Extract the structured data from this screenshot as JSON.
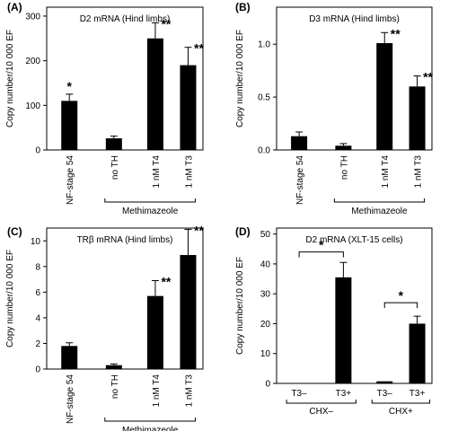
{
  "chart_data": [
    {
      "type": "bar",
      "panel": "(A)",
      "title": "D2 mRNA (Hind limbs)",
      "ylabel": "Copy number/10 000 EF",
      "ylim": [
        0,
        320
      ],
      "yticks": [
        0,
        100,
        200,
        300
      ],
      "categories": [
        "NF-stage 54",
        "no TH",
        "1 nM T4",
        "1 nM T3"
      ],
      "values": [
        110,
        26,
        250,
        190
      ],
      "errors": [
        15,
        5,
        35,
        40
      ],
      "annotations": [
        "*",
        "",
        "**",
        "**"
      ],
      "bracket": {
        "label": "Methimazeole",
        "from": 1,
        "to": 3
      }
    },
    {
      "type": "bar",
      "panel": "(B)",
      "title": "D3 mRNA (Hind limbs)",
      "ylabel": "Copy number/10 000 EF",
      "ylim": [
        0,
        1.35
      ],
      "yticks": [
        "0.0",
        "0.5",
        "1.0"
      ],
      "categories": [
        "NF-stage 54",
        "no TH",
        "1 nM T4",
        "1 nM T3"
      ],
      "values": [
        0.13,
        0.04,
        1.01,
        0.6
      ],
      "errors": [
        0.04,
        0.02,
        0.1,
        0.1
      ],
      "annotations": [
        "",
        "",
        "**",
        "**"
      ],
      "bracket": {
        "label": "Methimazeole",
        "from": 1,
        "to": 3
      }
    },
    {
      "type": "bar",
      "panel": "(C)",
      "title": "TRβ mRNA (Hind limbs)",
      "ylabel": "Copy number/10 000 EF",
      "ylim": [
        0,
        11
      ],
      "yticks": [
        0,
        2,
        4,
        6,
        8,
        10
      ],
      "categories": [
        "NF-stage 54",
        "no TH",
        "1 nM T4",
        "1 nM T3"
      ],
      "values": [
        1.8,
        0.3,
        5.7,
        8.9
      ],
      "errors": [
        0.25,
        0.1,
        1.2,
        2.0
      ],
      "annotations": [
        "",
        "",
        "**",
        "**"
      ],
      "bracket": {
        "label": "Methimazeole",
        "from": 1,
        "to": 3
      }
    },
    {
      "type": "bar",
      "panel": "(D)",
      "title": "D2 mRNA (XLT-15 cells)",
      "ylabel": "Copy number/10 000 EF",
      "ylim": [
        0,
        52
      ],
      "yticks": [
        0,
        10,
        20,
        30,
        40,
        50
      ],
      "categories": [
        "T3–",
        "T3+",
        "T3–",
        "T3+"
      ],
      "values": [
        0,
        35.5,
        0.7,
        20
      ],
      "errors": [
        0,
        5,
        0,
        2.5
      ],
      "annotations": [
        "",
        "",
        "",
        ""
      ],
      "groups": [
        {
          "label": "CHX–",
          "from": 0,
          "to": 1
        },
        {
          "label": "CHX+",
          "from": 2,
          "to": 3
        }
      ],
      "comparisons": [
        {
          "from": 0,
          "to": 1,
          "label": "*",
          "y": 44
        },
        {
          "from": 2,
          "to": 3,
          "label": "*",
          "y": 27
        }
      ]
    }
  ]
}
